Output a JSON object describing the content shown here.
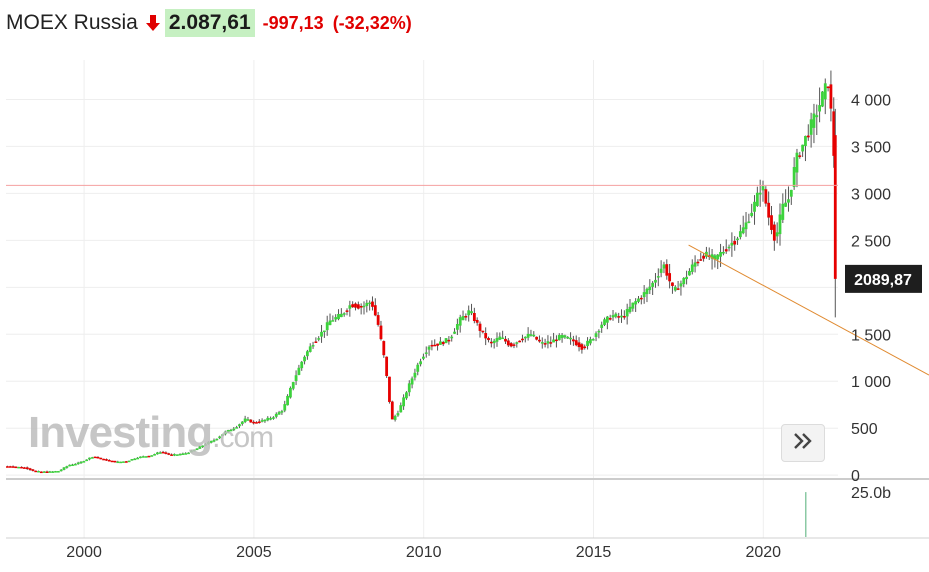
{
  "header": {
    "title": "MOEX Russia",
    "last_price": "2.087,61",
    "change": "-997,13",
    "change_percent": "(-32,32%)",
    "direction_icon": "arrow-down-icon"
  },
  "logo": {
    "part1": "Investing",
    "part2": ".com"
  },
  "scroll_button": {
    "icon": "double-chevron-right-icon"
  },
  "colors": {
    "up": "#3cd23c",
    "down": "#e60000",
    "prev_close_line": "#f4a0a0",
    "trendline": "#e08a30",
    "badge_bg": "#1e1e1e",
    "volume": "#8bc9a4",
    "grid": "#eeeeee",
    "header_price_bg": "#c6f0c2"
  },
  "chart_data": {
    "type": "candlestick",
    "x_axis": {
      "ticks": [
        2000,
        2005,
        2010,
        2015,
        2020
      ],
      "range": [
        1997.7,
        2022.2
      ]
    },
    "y_axis": {
      "ticks": [
        0,
        500,
        1000,
        1500,
        2000,
        2500,
        3000,
        3500,
        4000
      ],
      "tick_labels": [
        "0",
        "500",
        "1 000",
        "1 500",
        "",
        "2 500",
        "3 000",
        "3 500",
        "4 000"
      ],
      "range": [
        -30,
        4420
      ]
    },
    "current_price_label": "2089,87",
    "current_price": 2089.87,
    "previous_close_line": 3085,
    "trendline": {
      "from": [
        2017.8,
        2450
      ],
      "to": [
        2022.2,
        1590
      ]
    },
    "volume_axis_label": "25.0b",
    "volume_spike": {
      "x": 2021.25,
      "fraction_of_axis": 0.85
    },
    "series_points": [
      [
        1997.7,
        95
      ],
      [
        1998.0,
        90
      ],
      [
        1998.3,
        80
      ],
      [
        1998.6,
        40
      ],
      [
        1999.0,
        35
      ],
      [
        1999.3,
        45
      ],
      [
        1999.6,
        110
      ],
      [
        1999.9,
        130
      ],
      [
        2000.0,
        150
      ],
      [
        2000.3,
        200
      ],
      [
        2000.6,
        170
      ],
      [
        2001.0,
        140
      ],
      [
        2001.3,
        150
      ],
      [
        2001.6,
        190
      ],
      [
        2002.0,
        210
      ],
      [
        2002.3,
        250
      ],
      [
        2002.6,
        215
      ],
      [
        2003.0,
        230
      ],
      [
        2003.3,
        270
      ],
      [
        2003.6,
        330
      ],
      [
        2003.9,
        380
      ],
      [
        2004.2,
        460
      ],
      [
        2004.5,
        510
      ],
      [
        2004.8,
        600
      ],
      [
        2005.0,
        560
      ],
      [
        2005.3,
        580
      ],
      [
        2005.6,
        620
      ],
      [
        2005.9,
        700
      ],
      [
        2006.2,
        1000
      ],
      [
        2006.5,
        1250
      ],
      [
        2006.8,
        1420
      ],
      [
        2007.0,
        1500
      ],
      [
        2007.3,
        1650
      ],
      [
        2007.6,
        1700
      ],
      [
        2007.9,
        1820
      ],
      [
        2008.2,
        1790
      ],
      [
        2008.5,
        1850
      ],
      [
        2008.7,
        1600
      ],
      [
        2008.9,
        1200
      ],
      [
        2009.1,
        580
      ],
      [
        2009.3,
        680
      ],
      [
        2009.6,
        950
      ],
      [
        2009.9,
        1200
      ],
      [
        2010.2,
        1380
      ],
      [
        2010.5,
        1400
      ],
      [
        2010.8,
        1450
      ],
      [
        2011.1,
        1650
      ],
      [
        2011.4,
        1750
      ],
      [
        2011.7,
        1550
      ],
      [
        2012.0,
        1400
      ],
      [
        2012.3,
        1470
      ],
      [
        2012.6,
        1380
      ],
      [
        2012.9,
        1450
      ],
      [
        2013.2,
        1500
      ],
      [
        2013.5,
        1400
      ],
      [
        2013.8,
        1420
      ],
      [
        2014.1,
        1480
      ],
      [
        2014.4,
        1440
      ],
      [
        2014.7,
        1360
      ],
      [
        2015.0,
        1450
      ],
      [
        2015.3,
        1620
      ],
      [
        2015.6,
        1700
      ],
      [
        2015.9,
        1680
      ],
      [
        2016.2,
        1820
      ],
      [
        2016.5,
        1920
      ],
      [
        2016.8,
        2050
      ],
      [
        2017.1,
        2250
      ],
      [
        2017.4,
        1950
      ],
      [
        2017.7,
        2080
      ],
      [
        2018.0,
        2250
      ],
      [
        2018.3,
        2350
      ],
      [
        2018.6,
        2300
      ],
      [
        2018.9,
        2400
      ],
      [
        2019.2,
        2500
      ],
      [
        2019.5,
        2650
      ],
      [
        2019.8,
        2900
      ],
      [
        2020.0,
        3100
      ],
      [
        2020.2,
        2750
      ],
      [
        2020.4,
        2500
      ],
      [
        2020.6,
        2850
      ],
      [
        2020.8,
        2950
      ],
      [
        2021.0,
        3350
      ],
      [
        2021.3,
        3600
      ],
      [
        2021.6,
        3850
      ],
      [
        2021.8,
        4050
      ],
      [
        2021.95,
        4180
      ],
      [
        2022.05,
        3800
      ],
      [
        2022.12,
        3400
      ],
      [
        2022.17,
        2100
      ]
    ]
  }
}
